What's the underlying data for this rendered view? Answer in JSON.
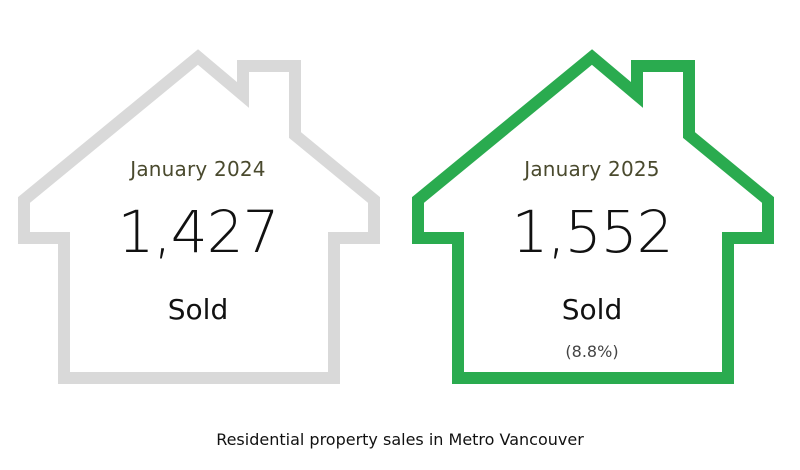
{
  "chart_data": {
    "type": "table",
    "caption": "Residential property sales in Metro Vancouver",
    "periods": [
      {
        "label": "January 2024",
        "value": 1427,
        "value_text": "1,427",
        "unit": "Sold",
        "change": "",
        "outline_color": "#d9d9d9"
      },
      {
        "label": "January 2025",
        "value": 1552,
        "value_text": "1,552",
        "unit": "Sold",
        "change": "(8.8%)",
        "outline_color": "#2aab4f"
      }
    ]
  }
}
